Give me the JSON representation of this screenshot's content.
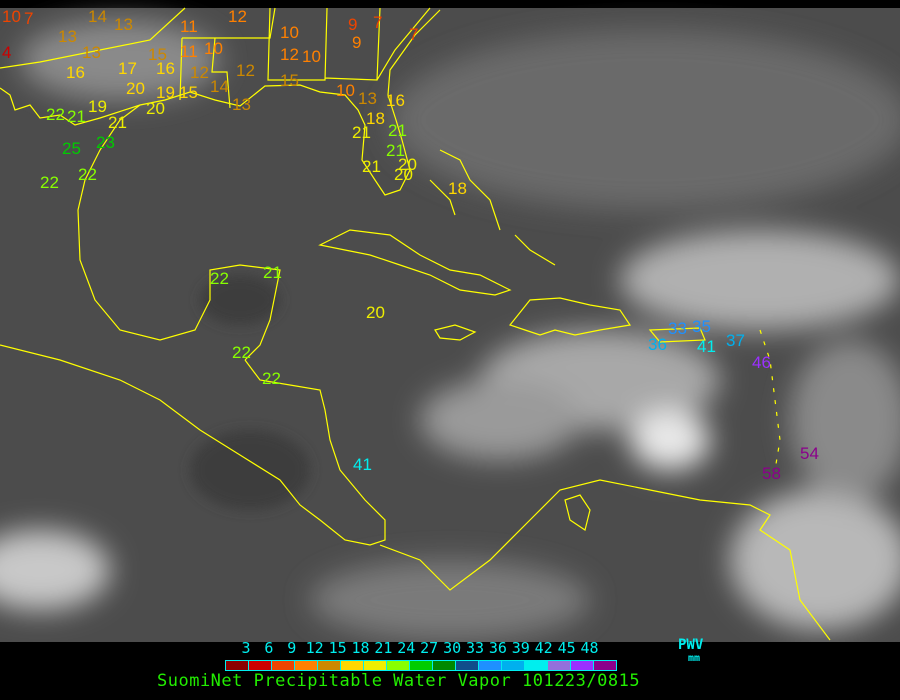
{
  "map": {
    "region": "Gulf of Mexico and Caribbean",
    "coastline_color": "#ffff00",
    "stations": [
      {
        "value": "10",
        "color": "#ee4400"
      },
      {
        "value": "7",
        "color": "#ee4400"
      },
      {
        "value": "4",
        "color": "#cc0000"
      },
      {
        "value": "13",
        "color": "#cc8800"
      },
      {
        "value": "13",
        "color": "#cc8800"
      },
      {
        "value": "14",
        "color": "#cc8800"
      },
      {
        "value": "13",
        "color": "#cc8800"
      },
      {
        "value": "15",
        "color": "#cc8800"
      },
      {
        "value": "11",
        "color": "#ff8000"
      },
      {
        "value": "11",
        "color": "#ff8000"
      },
      {
        "value": "10",
        "color": "#ff8000"
      },
      {
        "value": "12",
        "color": "#ff8000"
      },
      {
        "value": "12",
        "color": "#cc8800"
      },
      {
        "value": "10",
        "color": "#ff8000"
      },
      {
        "value": "12",
        "color": "#ff8000"
      },
      {
        "value": "10",
        "color": "#ff8000"
      },
      {
        "value": "9",
        "color": "#ee4400"
      },
      {
        "value": "9",
        "color": "#ff8000"
      },
      {
        "value": "7",
        "color": "#ee4400"
      },
      {
        "value": "7",
        "color": "#ee4400"
      },
      {
        "value": "16",
        "color": "#ffd700"
      },
      {
        "value": "17",
        "color": "#ffd700"
      },
      {
        "value": "20",
        "color": "#ffd700"
      },
      {
        "value": "16",
        "color": "#ffd700"
      },
      {
        "value": "12",
        "color": "#cc8800"
      },
      {
        "value": "19",
        "color": "#ffd700"
      },
      {
        "value": "15",
        "color": "#ffd700"
      },
      {
        "value": "14",
        "color": "#cc8800"
      },
      {
        "value": "13",
        "color": "#cc8800"
      },
      {
        "value": "15",
        "color": "#cc8800"
      },
      {
        "value": "10",
        "color": "#ff8000"
      },
      {
        "value": "13",
        "color": "#cc8800"
      },
      {
        "value": "16",
        "color": "#ffd700"
      },
      {
        "value": "18",
        "color": "#ffd700"
      },
      {
        "value": "21",
        "color": "#eeee00"
      },
      {
        "value": "21",
        "color": "#88ff00"
      },
      {
        "value": "21",
        "color": "#88ff00"
      },
      {
        "value": "20",
        "color": "#eeee00"
      },
      {
        "value": "22",
        "color": "#88ff00"
      },
      {
        "value": "21",
        "color": "#88ff00"
      },
      {
        "value": "19",
        "color": "#eeee00"
      },
      {
        "value": "21",
        "color": "#eeee00"
      },
      {
        "value": "20",
        "color": "#eeee00"
      },
      {
        "value": "25",
        "color": "#00cc00"
      },
      {
        "value": "23",
        "color": "#00cc00"
      },
      {
        "value": "22",
        "color": "#88ff00"
      },
      {
        "value": "22",
        "color": "#88ff00"
      },
      {
        "value": "21",
        "color": "#eeee00"
      },
      {
        "value": "20",
        "color": "#eeee00"
      },
      {
        "value": "18",
        "color": "#ffd700"
      },
      {
        "value": "22",
        "color": "#88ff00"
      },
      {
        "value": "21",
        "color": "#88ff00"
      },
      {
        "value": "20",
        "color": "#eeee00"
      },
      {
        "value": "22",
        "color": "#88ff00"
      },
      {
        "value": "22",
        "color": "#88ff00"
      },
      {
        "value": "41",
        "color": "#00eeee"
      },
      {
        "value": "36",
        "color": "#00b0ee"
      },
      {
        "value": "33",
        "color": "#1e90ff"
      },
      {
        "value": "35",
        "color": "#1e90ff"
      },
      {
        "value": "41",
        "color": "#00eeee"
      },
      {
        "value": "37",
        "color": "#00b0ee"
      },
      {
        "value": "46",
        "color": "#9b30ff"
      },
      {
        "value": "54",
        "color": "#8b008b"
      },
      {
        "value": "58",
        "color": "#8b008b"
      }
    ]
  },
  "legend": {
    "ticks": [
      "3",
      "6",
      "9",
      "12",
      "15",
      "18",
      "21",
      "24",
      "27",
      "30",
      "33",
      "36",
      "39",
      "42",
      "45",
      "48"
    ],
    "colors": [
      "#8b0000",
      "#cc0000",
      "#ee4400",
      "#ff8000",
      "#cc8800",
      "#ffd700",
      "#eeee00",
      "#88ff00",
      "#00cc00",
      "#008800",
      "#104e8b",
      "#1e90ff",
      "#00b0ee",
      "#00eeee",
      "#9370db",
      "#9b30ff",
      "#8b008b"
    ],
    "unit_label": "PWV",
    "unit": "mm",
    "title": "SuomiNet Precipitable Water Vapor 101223/0815"
  }
}
